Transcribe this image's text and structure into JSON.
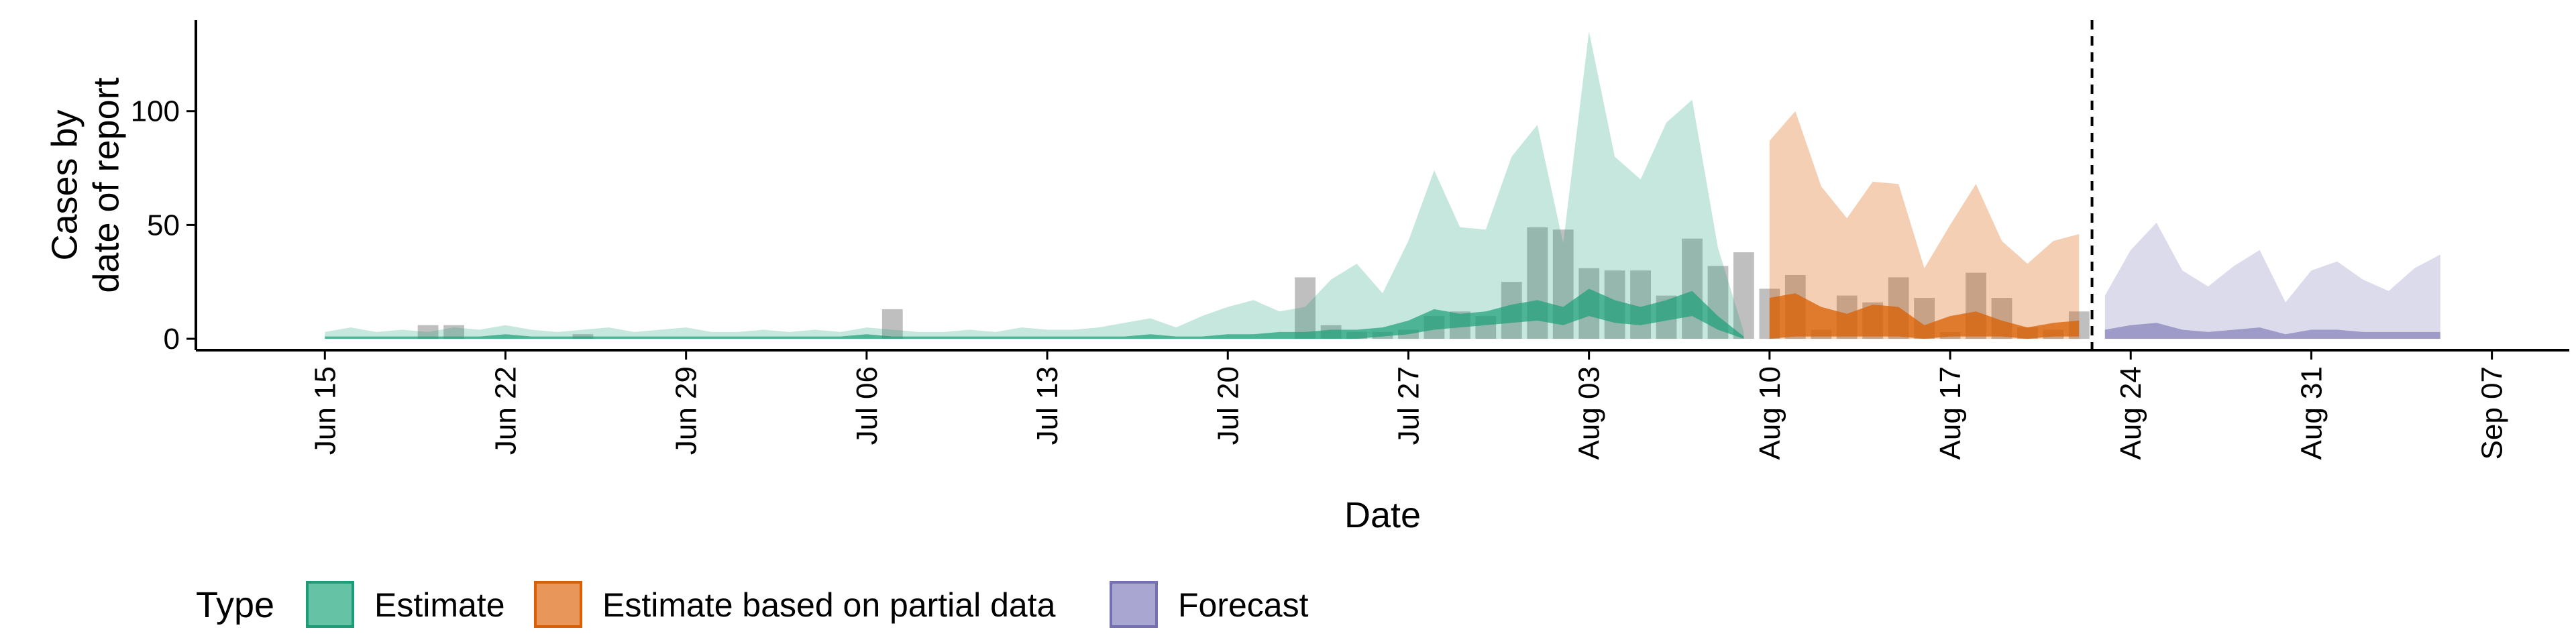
{
  "chart_data": {
    "type": "area",
    "xlabel": "Date",
    "ylabel_lines": [
      "Cases by",
      "date of report"
    ],
    "ylim": [
      -5,
      140
    ],
    "xlim": [
      "2020-06-10",
      "2020-09-10"
    ],
    "y_ticks": [
      0,
      50,
      100
    ],
    "x_ticks": [
      {
        "date": "2020-06-15",
        "label": "Jun 15"
      },
      {
        "date": "2020-06-22",
        "label": "Jun 22"
      },
      {
        "date": "2020-06-29",
        "label": "Jun 29"
      },
      {
        "date": "2020-07-06",
        "label": "Jul 06"
      },
      {
        "date": "2020-07-13",
        "label": "Jul 13"
      },
      {
        "date": "2020-07-20",
        "label": "Jul 20"
      },
      {
        "date": "2020-07-27",
        "label": "Jul 27"
      },
      {
        "date": "2020-08-03",
        "label": "Aug 03"
      },
      {
        "date": "2020-08-10",
        "label": "Aug 10"
      },
      {
        "date": "2020-08-17",
        "label": "Aug 17"
      },
      {
        "date": "2020-08-24",
        "label": "Aug 24"
      },
      {
        "date": "2020-08-31",
        "label": "Aug 31"
      },
      {
        "date": "2020-09-07",
        "label": "Sep 07"
      }
    ],
    "forecast_date": "2020-08-22",
    "grid": false,
    "legend": {
      "position": "bottom",
      "title": "Type",
      "items": [
        {
          "label": "Estimate",
          "fill": "#66c2a5",
          "stroke": "#1b9e77"
        },
        {
          "label": "Estimate based on partial data",
          "fill": "#e9965a",
          "stroke": "#d95f02"
        },
        {
          "label": "Forecast",
          "fill": "#a9a6d1",
          "stroke": "#7570b3"
        }
      ]
    },
    "series": [
      {
        "name": "Estimate",
        "color": "#1b9e77",
        "outer_opacity": 0.25,
        "inner_opacity": 0.7,
        "x": [
          "2020-06-15",
          "2020-06-16",
          "2020-06-17",
          "2020-06-18",
          "2020-06-19",
          "2020-06-20",
          "2020-06-21",
          "2020-06-22",
          "2020-06-23",
          "2020-06-24",
          "2020-06-25",
          "2020-06-26",
          "2020-06-27",
          "2020-06-28",
          "2020-06-29",
          "2020-06-30",
          "2020-07-01",
          "2020-07-02",
          "2020-07-03",
          "2020-07-04",
          "2020-07-05",
          "2020-07-06",
          "2020-07-07",
          "2020-07-08",
          "2020-07-09",
          "2020-07-10",
          "2020-07-11",
          "2020-07-12",
          "2020-07-13",
          "2020-07-14",
          "2020-07-15",
          "2020-07-16",
          "2020-07-17",
          "2020-07-18",
          "2020-07-19",
          "2020-07-20",
          "2020-07-21",
          "2020-07-22",
          "2020-07-23",
          "2020-07-24",
          "2020-07-25",
          "2020-07-26",
          "2020-07-27",
          "2020-07-28",
          "2020-07-29",
          "2020-07-30",
          "2020-07-31",
          "2020-08-01",
          "2020-08-02",
          "2020-08-03",
          "2020-08-04",
          "2020-08-05",
          "2020-08-06",
          "2020-08-07",
          "2020-08-08",
          "2020-08-09"
        ],
        "outer_upper": [
          3,
          5,
          3,
          4,
          3,
          5,
          4,
          6,
          4,
          3,
          4,
          5,
          3,
          4,
          5,
          3,
          3,
          4,
          3,
          4,
          3,
          5,
          4,
          3,
          3,
          4,
          3,
          5,
          4,
          4,
          5,
          7,
          9,
          5,
          10,
          14,
          17,
          12,
          14,
          26,
          33,
          20,
          43,
          74,
          49,
          48,
          80,
          94,
          42,
          135,
          80,
          70,
          95,
          105,
          40,
          3
        ],
        "outer_lower": [
          0,
          0,
          0,
          0,
          0,
          0,
          0,
          0,
          0,
          0,
          0,
          0,
          0,
          0,
          0,
          0,
          0,
          0,
          0,
          0,
          0,
          0,
          0,
          0,
          0,
          0,
          0,
          0,
          0,
          0,
          0,
          0,
          0,
          0,
          0,
          0,
          0,
          0,
          0,
          0,
          0,
          0,
          0,
          0,
          0,
          0,
          0,
          0,
          0,
          0,
          0,
          0,
          0,
          0,
          0,
          0
        ],
        "inner_upper": [
          1,
          1,
          1,
          1,
          1,
          1,
          1,
          2,
          1,
          1,
          1,
          1,
          1,
          1,
          1,
          1,
          1,
          1,
          1,
          1,
          1,
          2,
          1,
          1,
          1,
          1,
          1,
          1,
          1,
          1,
          1,
          1,
          2,
          1,
          1,
          2,
          2,
          3,
          3,
          4,
          4,
          5,
          8,
          13,
          11,
          12,
          15,
          17,
          14,
          22,
          17,
          14,
          17,
          21,
          10,
          1
        ],
        "inner_lower": [
          0,
          0,
          0,
          0,
          0,
          0,
          0,
          0,
          0,
          0,
          0,
          0,
          0,
          0,
          0,
          0,
          0,
          0,
          0,
          0,
          0,
          0,
          0,
          0,
          0,
          0,
          0,
          0,
          0,
          0,
          0,
          0,
          0,
          0,
          0,
          0,
          0,
          0,
          0,
          0,
          0,
          1,
          2,
          4,
          5,
          6,
          7,
          8,
          6,
          10,
          7,
          6,
          8,
          10,
          4,
          0
        ]
      },
      {
        "name": "Estimate based on partial data",
        "color": "#d95f02",
        "outer_opacity": 0.3,
        "inner_opacity": 0.75,
        "x": [
          "2020-08-10",
          "2020-08-11",
          "2020-08-12",
          "2020-08-13",
          "2020-08-14",
          "2020-08-15",
          "2020-08-16",
          "2020-08-17",
          "2020-08-18",
          "2020-08-19",
          "2020-08-20",
          "2020-08-21",
          "2020-08-22"
        ],
        "outer_upper": [
          87,
          100,
          67,
          53,
          69,
          68,
          31,
          50,
          68,
          43,
          33,
          43,
          46
        ],
        "outer_lower": [
          0,
          0,
          0,
          0,
          0,
          0,
          0,
          0,
          0,
          0,
          0,
          0,
          0
        ],
        "inner_upper": [
          18,
          20,
          14,
          11,
          15,
          14,
          6,
          10,
          12,
          8,
          5,
          7,
          8
        ],
        "inner_lower": [
          0,
          1,
          1,
          1,
          1,
          1,
          0,
          1,
          1,
          1,
          0,
          1,
          1
        ]
      },
      {
        "name": "Forecast",
        "color": "#7570b3",
        "outer_opacity": 0.25,
        "inner_opacity": 0.6,
        "x": [
          "2020-08-23",
          "2020-08-24",
          "2020-08-25",
          "2020-08-26",
          "2020-08-27",
          "2020-08-28",
          "2020-08-29",
          "2020-08-30",
          "2020-08-31",
          "2020-09-01",
          "2020-09-02",
          "2020-09-03",
          "2020-09-04",
          "2020-09-05"
        ],
        "outer_upper": [
          19,
          39,
          51,
          30,
          23,
          32,
          39,
          16,
          30,
          34,
          26,
          21,
          31,
          37
        ],
        "outer_lower": [
          0,
          0,
          0,
          0,
          0,
          0,
          0,
          0,
          0,
          0,
          0,
          0,
          0,
          0
        ],
        "inner_upper": [
          4,
          6,
          7,
          4,
          3,
          4,
          5,
          2,
          4,
          4,
          3,
          3,
          3,
          3
        ],
        "inner_lower": [
          0,
          0,
          0,
          0,
          0,
          0,
          0,
          0,
          0,
          0,
          0,
          0,
          0,
          0
        ]
      }
    ],
    "reported_cases": {
      "color": "#808080",
      "opacity": 0.5,
      "points": [
        {
          "date": "2020-06-19",
          "value": 6
        },
        {
          "date": "2020-06-20",
          "value": 6
        },
        {
          "date": "2020-06-25",
          "value": 2
        },
        {
          "date": "2020-07-07",
          "value": 13
        },
        {
          "date": "2020-07-23",
          "value": 27
        },
        {
          "date": "2020-07-24",
          "value": 6
        },
        {
          "date": "2020-07-25",
          "value": 3
        },
        {
          "date": "2020-07-26",
          "value": 3
        },
        {
          "date": "2020-07-27",
          "value": 4
        },
        {
          "date": "2020-07-28",
          "value": 10
        },
        {
          "date": "2020-07-29",
          "value": 12
        },
        {
          "date": "2020-07-30",
          "value": 10
        },
        {
          "date": "2020-07-31",
          "value": 25
        },
        {
          "date": "2020-08-01",
          "value": 49
        },
        {
          "date": "2020-08-02",
          "value": 48
        },
        {
          "date": "2020-08-03",
          "value": 31
        },
        {
          "date": "2020-08-04",
          "value": 30
        },
        {
          "date": "2020-08-05",
          "value": 30
        },
        {
          "date": "2020-08-06",
          "value": 19
        },
        {
          "date": "2020-08-07",
          "value": 44
        },
        {
          "date": "2020-08-08",
          "value": 32
        },
        {
          "date": "2020-08-09",
          "value": 38
        },
        {
          "date": "2020-08-10",
          "value": 22
        },
        {
          "date": "2020-08-11",
          "value": 28
        },
        {
          "date": "2020-08-12",
          "value": 4
        },
        {
          "date": "2020-08-13",
          "value": 19
        },
        {
          "date": "2020-08-14",
          "value": 16
        },
        {
          "date": "2020-08-15",
          "value": 27
        },
        {
          "date": "2020-08-16",
          "value": 18
        },
        {
          "date": "2020-08-17",
          "value": 3
        },
        {
          "date": "2020-08-18",
          "value": 29
        },
        {
          "date": "2020-08-19",
          "value": 18
        },
        {
          "date": "2020-08-20",
          "value": 5
        },
        {
          "date": "2020-08-21",
          "value": 4
        },
        {
          "date": "2020-08-22",
          "value": 12
        }
      ]
    }
  }
}
